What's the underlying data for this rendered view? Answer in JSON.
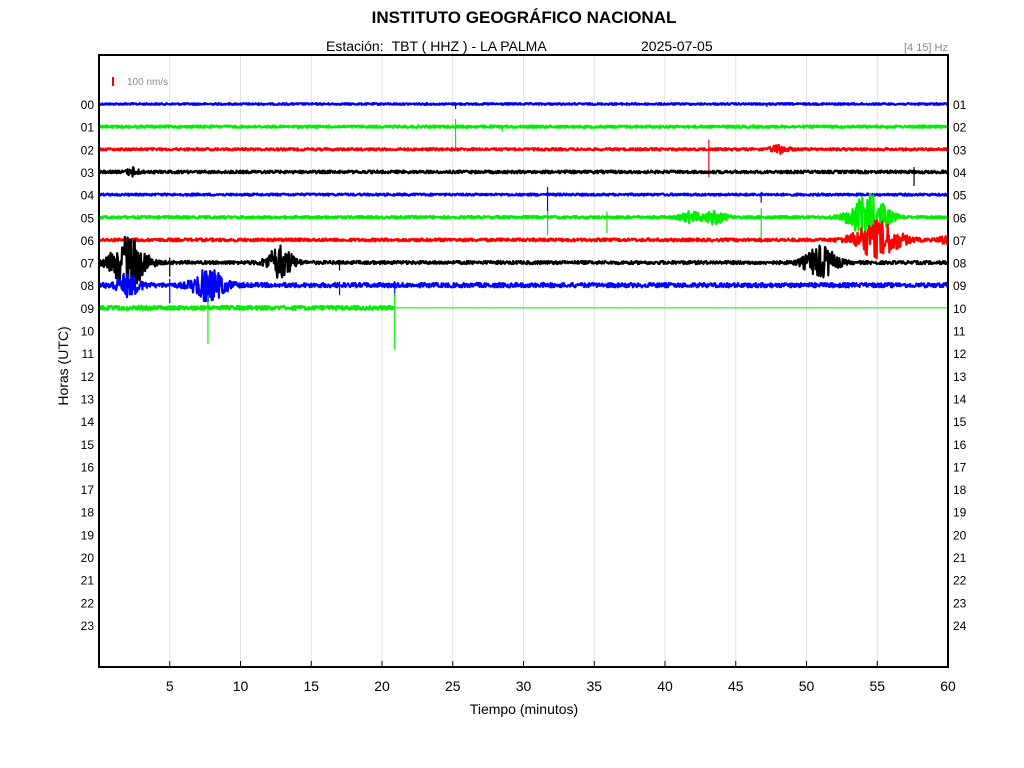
{
  "header": {
    "title": "INSTITUTO GEOGRÁFICO NACIONAL",
    "station_label": "Estación:",
    "station": "TBT ( HHZ ) - LA PALMA",
    "date": "2025-07-05",
    "filter": "[4 15] Hz"
  },
  "chart_data": {
    "type": "line",
    "title": "INSTITUTO GEOGRÁFICO NACIONAL",
    "xlabel": "Tiempo (minutos)",
    "ylabel": "Horas (UTC)",
    "xlim": [
      0,
      60
    ],
    "x_ticks": [
      5,
      10,
      15,
      20,
      25,
      30,
      35,
      40,
      45,
      50,
      55,
      60
    ],
    "hour_labels_left": [
      "00",
      "01",
      "02",
      "03",
      "04",
      "05",
      "06",
      "07",
      "08",
      "09",
      "10",
      "11",
      "12",
      "13",
      "14",
      "15",
      "16",
      "17",
      "18",
      "19",
      "20",
      "21",
      "22",
      "23"
    ],
    "hour_labels_right": [
      "01",
      "02",
      "03",
      "04",
      "05",
      "06",
      "07",
      "08",
      "09",
      "10",
      "11",
      "12",
      "13",
      "14",
      "15",
      "16",
      "17",
      "18",
      "19",
      "20",
      "21",
      "22",
      "23",
      "24"
    ],
    "scale_label": "100 nm/s",
    "grid": true,
    "colors": [
      "#0000ff",
      "#00ee00",
      "#ff0000",
      "#000000"
    ],
    "traces": [
      {
        "hour": 0,
        "color": "#0000ff",
        "noise": 0.9,
        "end_min": 60,
        "bursts": [],
        "spikes": [
          {
            "t": 25.2,
            "a": 5
          },
          {
            "t": 47.2,
            "a": 3
          },
          {
            "t": 37.3,
            "a": 2
          }
        ]
      },
      {
        "hour": 1,
        "color": "#00ee00",
        "noise": 1.2,
        "end_min": 60,
        "bursts": [],
        "spikes": [
          {
            "t": 25.2,
            "a": 22
          },
          {
            "t": 28.5,
            "a": 5
          }
        ]
      },
      {
        "hour": 2,
        "color": "#ff0000",
        "noise": 1.2,
        "end_min": 60,
        "bursts": [
          {
            "t": 48.1,
            "w": 0.6,
            "a": 4
          }
        ],
        "spikes": [
          {
            "t": 43.1,
            "a": 28
          }
        ]
      },
      {
        "hour": 3,
        "color": "#000000",
        "noise": 1.4,
        "end_min": 60,
        "bursts": [
          {
            "t": 2.4,
            "w": 0.4,
            "a": 4
          }
        ],
        "spikes": [
          {
            "t": 57.6,
            "a": 14
          }
        ]
      },
      {
        "hour": 4,
        "color": "#0000ff",
        "noise": 1.1,
        "end_min": 60,
        "bursts": [],
        "spikes": [
          {
            "t": 31.7,
            "a": 22
          },
          {
            "t": 46.8,
            "a": 8
          }
        ]
      },
      {
        "hour": 5,
        "color": "#00ee00",
        "noise": 1.3,
        "end_min": 60,
        "bursts": [
          {
            "t": 41.8,
            "w": 0.7,
            "a": 5
          },
          {
            "t": 43.5,
            "w": 0.8,
            "a": 6
          },
          {
            "t": 54.4,
            "w": 1.3,
            "a": 22
          }
        ],
        "spikes": [
          {
            "t": 31.7,
            "a": 18
          },
          {
            "t": 35.9,
            "a": 16
          },
          {
            "t": 46.8,
            "a": 26
          }
        ]
      },
      {
        "hour": 6,
        "color": "#ff0000",
        "noise": 1.5,
        "end_min": 60,
        "bursts": [
          {
            "t": 55.0,
            "w": 1.6,
            "a": 18
          },
          {
            "t": 59.7,
            "w": 0.4,
            "a": 4
          }
        ],
        "spikes": []
      },
      {
        "hour": 7,
        "color": "#000000",
        "noise": 1.6,
        "end_min": 60,
        "bursts": [
          {
            "t": 2.1,
            "w": 1.2,
            "a": 26
          },
          {
            "t": 12.8,
            "w": 0.9,
            "a": 16
          },
          {
            "t": 51.0,
            "w": 1.1,
            "a": 16
          }
        ],
        "spikes": [
          {
            "t": 5.0,
            "a": 14
          },
          {
            "t": 17.0,
            "a": 8
          }
        ]
      },
      {
        "hour": 8,
        "color": "#0000ff",
        "noise": 2.2,
        "end_min": 60,
        "bursts": [
          {
            "t": 7.8,
            "w": 1.1,
            "a": 16
          },
          {
            "t": 2.0,
            "w": 0.9,
            "a": 10
          }
        ],
        "spikes": [
          {
            "t": 5.0,
            "a": 18
          },
          {
            "t": 17.0,
            "a": 10
          },
          {
            "t": 20.9,
            "a": 12
          }
        ]
      },
      {
        "hour": 9,
        "color": "#00ee00",
        "noise": 2.0,
        "end_min": 20.8,
        "bursts": [],
        "spikes": [
          {
            "t": 7.7,
            "a": 36
          },
          {
            "t": 20.9,
            "a": 42
          }
        ]
      }
    ]
  }
}
